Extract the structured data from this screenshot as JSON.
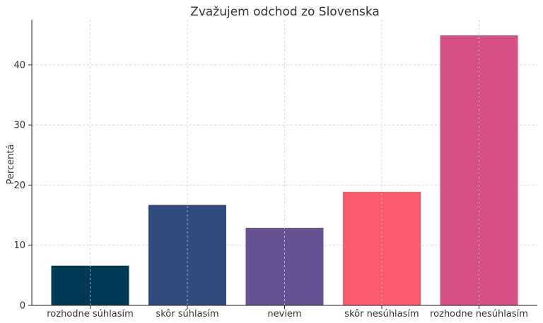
{
  "chart_data": {
    "type": "bar",
    "title": "Zvažujem odchod zo Slovenska",
    "xlabel": "",
    "ylabel": "Percentá",
    "categories": [
      "rozhodne súhlasím",
      "skôr súhlasím",
      "neviem",
      "skôr nesúhlasím",
      "rozhodne nesúhlasím"
    ],
    "values": [
      6.6,
      16.7,
      12.9,
      18.9,
      44.9
    ],
    "colors": [
      "#003a57",
      "#2e4b7d",
      "#665192",
      "#fb5a6a",
      "#d55087"
    ],
    "ylim": [
      0,
      47.5
    ],
    "yticks": [
      0,
      10,
      20,
      30,
      40
    ],
    "grid": true
  }
}
